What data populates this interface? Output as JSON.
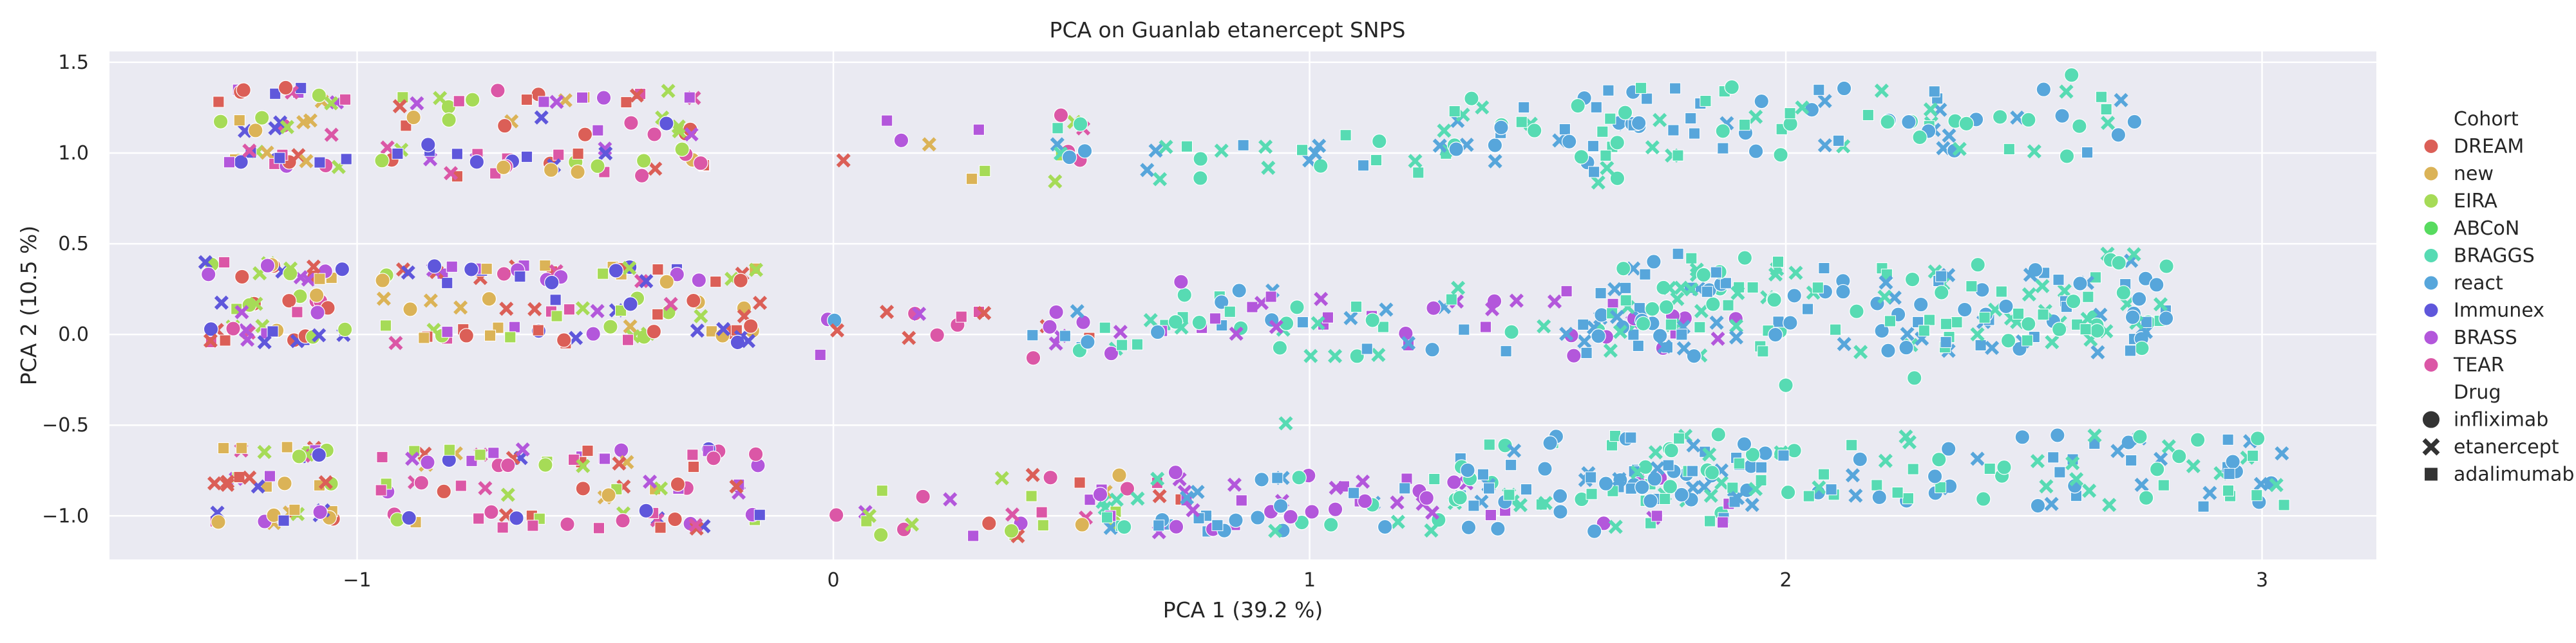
{
  "chart_data": {
    "type": "scatter",
    "title": "PCA on Guanlab etanercept SNPS",
    "xlabel": "PCA 1 (39.2 %)",
    "ylabel": "PCA 2 (10.5 %)",
    "xlim": [
      -1.52,
      3.24
    ],
    "ylim": [
      -1.24,
      1.56
    ],
    "xticks": [
      -1,
      0,
      1,
      2,
      3
    ],
    "yticks": [
      -1.0,
      -0.5,
      0.0,
      0.5,
      1.0,
      1.5
    ],
    "xtick_labels": [
      "−1",
      "0",
      "1",
      "2",
      "3"
    ],
    "ytick_labels": [
      "−1.0",
      "−0.5",
      "0.0",
      "0.5",
      "1.0",
      "1.5"
    ],
    "grid": true,
    "background": "#eaeaf2",
    "legend_position": "right",
    "legend": {
      "hue_title": "Cohort",
      "style_title": "Drug",
      "cohorts": [
        {
          "name": "DREAM",
          "color": "#db5f57"
        },
        {
          "name": "new",
          "color": "#dbb357"
        },
        {
          "name": "EIRA",
          "color": "#a6db57"
        },
        {
          "name": "ABCoN",
          "color": "#57db5f"
        },
        {
          "name": "BRAGGS",
          "color": "#57dbb3"
        },
        {
          "name": "react",
          "color": "#57a6db"
        },
        {
          "name": "Immunex",
          "color": "#5f57db"
        },
        {
          "name": "BRASS",
          "color": "#b357db"
        },
        {
          "name": "TEAR",
          "color": "#db57a6"
        }
      ],
      "drugs": [
        {
          "name": "infliximab",
          "marker": "circle"
        },
        {
          "name": "etanercept",
          "marker": "x"
        },
        {
          "name": "adalimumab",
          "marker": "square"
        }
      ]
    },
    "clusters_note_free": true,
    "clusters": [
      {
        "cohorts": [
          "DREAM",
          "new",
          "EIRA",
          "TEAR",
          "Immunex",
          "BRASS"
        ],
        "x_range": [
          -1.32,
          -1.02
        ],
        "y_centers": [
          1.32,
          1.15,
          0.97
        ],
        "y_spread": 0.05,
        "n": 46
      },
      {
        "cohorts": [
          "DREAM",
          "new",
          "EIRA",
          "TEAR",
          "Immunex",
          "BRASS"
        ],
        "x_range": [
          -1.32,
          -1.02
        ],
        "y_centers": [
          0.35,
          0.17,
          0.0
        ],
        "y_spread": 0.05,
        "n": 60
      },
      {
        "cohorts": [
          "DREAM",
          "new",
          "EIRA",
          "TEAR",
          "Immunex",
          "BRASS"
        ],
        "x_range": [
          -1.3,
          -1.05
        ],
        "y_centers": [
          -0.65,
          -0.82,
          -1.0
        ],
        "y_spread": 0.04,
        "n": 46
      },
      {
        "cohorts": [
          "DREAM",
          "new",
          "EIRA",
          "TEAR",
          "Immunex",
          "BRASS"
        ],
        "x_range": [
          -0.95,
          -0.25
        ],
        "y_centers": [
          1.3,
          1.15,
          1.0,
          0.92
        ],
        "y_spread": 0.05,
        "n": 80
      },
      {
        "cohorts": [
          "DREAM",
          "new",
          "EIRA",
          "TEAR",
          "Immunex",
          "BRASS"
        ],
        "x_range": [
          -0.95,
          -0.15
        ],
        "y_centers": [
          0.33,
          0.15,
          0.0
        ],
        "y_spread": 0.05,
        "n": 110
      },
      {
        "cohorts": [
          "DREAM",
          "new",
          "EIRA",
          "TEAR",
          "Immunex",
          "BRASS"
        ],
        "x_range": [
          -0.95,
          -0.15
        ],
        "y_centers": [
          -0.68,
          -0.85,
          -1.02
        ],
        "y_spread": 0.05,
        "n": 90
      },
      {
        "cohorts": [
          "BRASS",
          "TEAR",
          "DREAM",
          "EIRA",
          "new"
        ],
        "x_range": [
          -0.1,
          0.55
        ],
        "y_centers": [
          1.1,
          0.95
        ],
        "y_spread": 0.12,
        "n": 14
      },
      {
        "cohorts": [
          "BRASS",
          "TEAR",
          "DREAM",
          "react"
        ],
        "x_range": [
          -0.05,
          0.55
        ],
        "y_centers": [
          0.05,
          -0.05
        ],
        "y_spread": 0.08,
        "n": 22
      },
      {
        "cohorts": [
          "BRASS",
          "TEAR",
          "DREAM",
          "new",
          "EIRA"
        ],
        "x_range": [
          0.0,
          0.75
        ],
        "y_centers": [
          -0.85,
          -1.05
        ],
        "y_spread": 0.08,
        "n": 36
      },
      {
        "cohorts": [
          "react",
          "BRAGGS"
        ],
        "x_range": [
          0.45,
          1.7
        ],
        "y_centers": [
          1.05,
          0.95
        ],
        "y_spread": 0.12,
        "n": 50
      },
      {
        "cohorts": [
          "react",
          "BRAGGS",
          "BRASS"
        ],
        "x_range": [
          0.45,
          1.9
        ],
        "y_centers": [
          0.15,
          0.0
        ],
        "y_spread": 0.12,
        "n": 110
      },
      {
        "cohorts": [
          "react",
          "BRAGGS",
          "BRASS"
        ],
        "x_range": [
          0.5,
          1.9
        ],
        "y_centers": [
          -0.85,
          -1.0
        ],
        "y_spread": 0.09,
        "n": 110
      },
      {
        "cohorts": [
          "BRAGGS",
          "react"
        ],
        "x_range": [
          1.3,
          2.75
        ],
        "y_centers": [
          1.25,
          1.1
        ],
        "y_spread": 0.12,
        "n": 100
      },
      {
        "cohorts": [
          "BRAGGS",
          "react"
        ],
        "x_range": [
          1.6,
          2.8
        ],
        "y_centers": [
          0.35,
          0.15,
          0.0
        ],
        "y_spread": 0.1,
        "n": 190
      },
      {
        "cohorts": [
          "BRAGGS",
          "react"
        ],
        "x_range": [
          1.3,
          3.05
        ],
        "y_centers": [
          -0.65,
          -0.85
        ],
        "y_spread": 0.1,
        "n": 170
      }
    ],
    "outliers": [
      {
        "x": 2.0,
        "y": -0.28,
        "cohort": "BRAGGS",
        "drug": "infliximab"
      },
      {
        "x": 2.27,
        "y": -0.24,
        "cohort": "BRAGGS",
        "drug": "infliximab"
      },
      {
        "x": 0.95,
        "y": -0.49,
        "cohort": "BRAGGS",
        "drug": "etanercept"
      },
      {
        "x": -1.15,
        "y": 1.36,
        "cohort": "DREAM",
        "drug": "infliximab"
      },
      {
        "x": 0.73,
        "y": 0.29,
        "cohort": "BRASS",
        "drug": "infliximab"
      },
      {
        "x": 0.72,
        "y": -1.06,
        "cohort": "BRASS",
        "drug": "infliximab"
      },
      {
        "x": 2.6,
        "y": 1.43,
        "cohort": "BRAGGS",
        "drug": "infliximab"
      },
      {
        "x": 3.03,
        "y": -0.83,
        "cohort": "BRAGGS",
        "drug": "etanercept"
      }
    ]
  }
}
